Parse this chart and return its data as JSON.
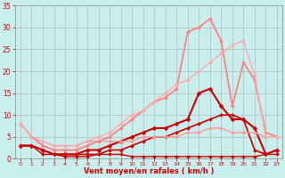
{
  "bg_color": "#c8eeed",
  "grid_color": "#aaaaaa",
  "xlabel": "Vent moyen/en rafales ( km/h )",
  "xlabel_color": "#cc0000",
  "tick_color": "#cc0000",
  "xlim": [
    -0.5,
    23.5
  ],
  "ylim": [
    0,
    35
  ],
  "yticks": [
    0,
    5,
    10,
    15,
    20,
    25,
    30,
    35
  ],
  "xticks": [
    0,
    1,
    2,
    3,
    4,
    5,
    6,
    7,
    8,
    9,
    10,
    11,
    12,
    13,
    14,
    15,
    16,
    17,
    18,
    19,
    20,
    21,
    22,
    23
  ],
  "lines": [
    {
      "x": [
        0,
        1,
        2,
        3,
        4,
        5,
        6,
        7,
        8,
        9,
        10,
        11,
        12,
        13,
        14,
        15,
        16,
        17,
        18,
        19,
        20,
        21,
        22,
        23
      ],
      "y": [
        3,
        3,
        1,
        1,
        0.5,
        0.5,
        0.5,
        1,
        1,
        1,
        0.5,
        0.5,
        0.5,
        0.5,
        0.5,
        0.5,
        0.5,
        0.5,
        0.5,
        0.5,
        0.5,
        0.5,
        1,
        1
      ],
      "color": "#cc0000",
      "lw": 1.0,
      "marker": "D",
      "ms": 2.0
    },
    {
      "x": [
        0,
        1,
        2,
        3,
        4,
        5,
        6,
        7,
        8,
        9,
        10,
        11,
        12,
        13,
        14,
        15,
        16,
        17,
        18,
        19,
        20,
        21,
        22,
        23
      ],
      "y": [
        3,
        3,
        2,
        1,
        1,
        1,
        1,
        1,
        2,
        2,
        3,
        4,
        5,
        5,
        6,
        7,
        8,
        9,
        10,
        10,
        9,
        2,
        1,
        2
      ],
      "color": "#cc0000",
      "lw": 1.2,
      "marker": "D",
      "ms": 2.0
    },
    {
      "x": [
        0,
        1,
        2,
        3,
        4,
        5,
        6,
        7,
        8,
        9,
        10,
        11,
        12,
        13,
        14,
        15,
        16,
        17,
        18,
        19,
        20,
        21,
        22,
        23
      ],
      "y": [
        3,
        3,
        2,
        1,
        1,
        1,
        2,
        2,
        3,
        4,
        5,
        6,
        7,
        7,
        8,
        9,
        15,
        16,
        12,
        9,
        9,
        7,
        1,
        2
      ],
      "color": "#cc0000",
      "lw": 1.5,
      "marker": "D",
      "ms": 2.5
    },
    {
      "x": [
        0,
        1,
        2,
        3,
        4,
        5,
        6,
        7,
        8,
        9,
        10,
        11,
        12,
        13,
        14,
        15,
        16,
        17,
        18,
        19,
        20,
        21,
        22,
        23
      ],
      "y": [
        8,
        5,
        4,
        3,
        3,
        3,
        4,
        4,
        4,
        4,
        4,
        5,
        5,
        5,
        5,
        6,
        6,
        7,
        7,
        6,
        6,
        6,
        5,
        5
      ],
      "color": "#ff9999",
      "lw": 1.0,
      "marker": "D",
      "ms": 2.0
    },
    {
      "x": [
        0,
        1,
        2,
        3,
        4,
        5,
        6,
        7,
        8,
        9,
        10,
        11,
        12,
        13,
        14,
        15,
        16,
        17,
        18,
        19,
        20,
        21,
        22,
        23
      ],
      "y": [
        8,
        5,
        3,
        2,
        2,
        2,
        3,
        4,
        5,
        7,
        9,
        11,
        13,
        14,
        16,
        29,
        30,
        32,
        27,
        12,
        22,
        18,
        6,
        5
      ],
      "color": "#ff8080",
      "lw": 1.3,
      "marker": "D",
      "ms": 2.0
    },
    {
      "x": [
        0,
        1,
        2,
        3,
        4,
        5,
        6,
        7,
        8,
        9,
        10,
        11,
        12,
        13,
        14,
        15,
        16,
        17,
        18,
        19,
        20,
        21,
        22,
        23
      ],
      "y": [
        8,
        5,
        4,
        3,
        3,
        3,
        4,
        5,
        6,
        8,
        10,
        11,
        13,
        15,
        17,
        18,
        20,
        22,
        24,
        26,
        27,
        19,
        5,
        5
      ],
      "color": "#ffaaaa",
      "lw": 1.0,
      "marker": "D",
      "ms": 2.0
    }
  ]
}
